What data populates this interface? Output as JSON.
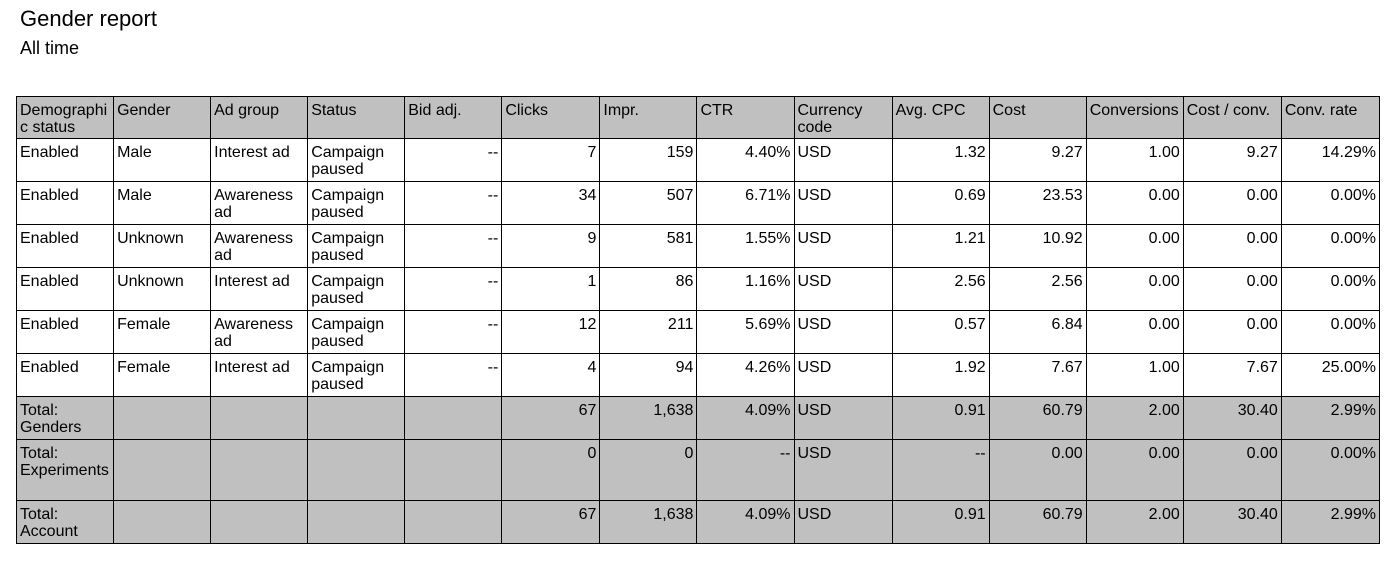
{
  "report": {
    "title": "Gender report",
    "subtitle": "All time"
  },
  "table": {
    "columns": [
      "Demographic status",
      "Gender",
      "Ad group",
      "Status",
      "Bid adj.",
      "Clicks",
      "Impr.",
      "CTR",
      "Currency code",
      "Avg. CPC",
      "Cost",
      "Conversions",
      "Cost / conv.",
      "Conv. rate"
    ],
    "rows": [
      [
        "Enabled",
        "Male",
        "Interest ad",
        "Campaign paused",
        "--",
        "7",
        "159",
        "4.40%",
        "USD",
        "1.32",
        "9.27",
        "1.00",
        "9.27",
        "14.29%"
      ],
      [
        "Enabled",
        "Male",
        "Awareness ad",
        "Campaign paused",
        "--",
        "34",
        "507",
        "6.71%",
        "USD",
        "0.69",
        "23.53",
        "0.00",
        "0.00",
        "0.00%"
      ],
      [
        "Enabled",
        "Unknown",
        "Awareness ad",
        "Campaign paused",
        "--",
        "9",
        "581",
        "1.55%",
        "USD",
        "1.21",
        "10.92",
        "0.00",
        "0.00",
        "0.00%"
      ],
      [
        "Enabled",
        "Unknown",
        "Interest ad",
        "Campaign paused",
        "--",
        "1",
        "86",
        "1.16%",
        "USD",
        "2.56",
        "2.56",
        "0.00",
        "0.00",
        "0.00%"
      ],
      [
        "Enabled",
        "Female",
        "Awareness ad",
        "Campaign paused",
        "--",
        "12",
        "211",
        "5.69%",
        "USD",
        "0.57",
        "6.84",
        "0.00",
        "0.00",
        "0.00%"
      ],
      [
        "Enabled",
        "Female",
        "Interest ad",
        "Campaign paused",
        "--",
        "4",
        "94",
        "4.26%",
        "USD",
        "1.92",
        "7.67",
        "1.00",
        "7.67",
        "25.00%"
      ]
    ],
    "totals": [
      [
        "Total: Genders",
        "",
        "",
        "",
        "",
        "67",
        "1,638",
        "4.09%",
        "USD",
        "0.91",
        "60.79",
        "2.00",
        "30.40",
        "2.99%"
      ],
      [
        "Total: Experiments",
        "",
        "",
        "",
        "",
        "0",
        "0",
        "--",
        "USD",
        "--",
        "0.00",
        "0.00",
        "0.00",
        "0.00%"
      ],
      [
        "Total: Account",
        "",
        "",
        "",
        "",
        "67",
        "1,638",
        "4.09%",
        "USD",
        "0.91",
        "60.79",
        "2.00",
        "30.40",
        "2.99%"
      ]
    ]
  }
}
